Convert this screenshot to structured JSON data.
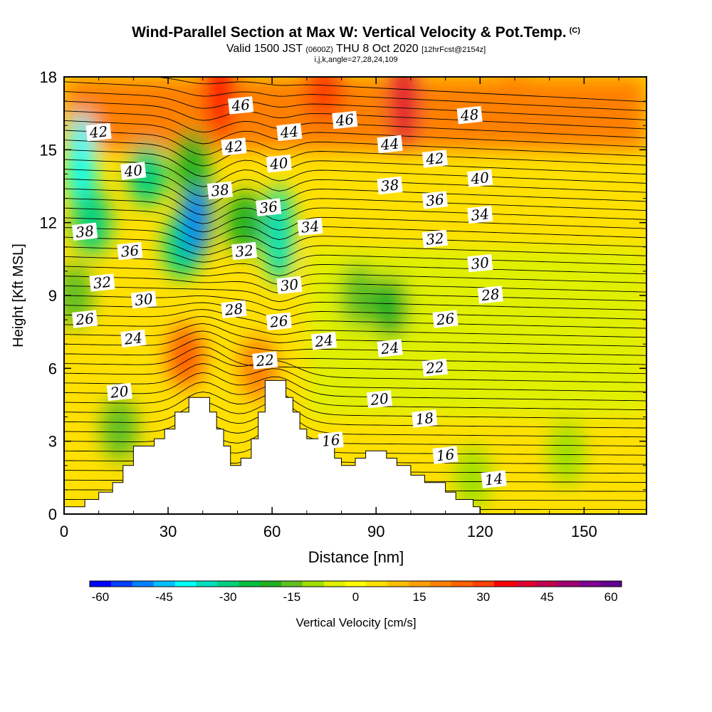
{
  "title": {
    "main": "Wind-Parallel Section at Max W: Vertical Velocity & Pot.Temp.",
    "copyright": "(C)",
    "valid_prefix": "Valid 1500 JST",
    "utc": "(0600Z)",
    "valid_date": "THU 8 Oct 2020",
    "forecast": "[12hrFcst@2154z]",
    "indices": "i,j,k,angle=27,28,24,109"
  },
  "chart_data": {
    "type": "heatmap",
    "xlabel": "Distance [nm]",
    "ylabel": "Height [Kft MSL]",
    "xlim": [
      0,
      168
    ],
    "ylim": [
      0,
      18
    ],
    "xticks": [
      0,
      30,
      60,
      90,
      120,
      150
    ],
    "yticks": [
      0,
      3,
      6,
      9,
      12,
      15,
      18
    ],
    "colorbar": {
      "label": "Vertical Velocity [cm/s]",
      "min": -60,
      "max": 60,
      "tick_values": [
        -60,
        -45,
        -30,
        -15,
        0,
        15,
        30,
        45,
        60
      ],
      "tick_labels": [
        "-60",
        "-45",
        "-30",
        "-15",
        "0",
        "15",
        "30",
        "45",
        "60"
      ],
      "colors": [
        "#0000ff",
        "#0040ff",
        "#0080ff",
        "#00c0ff",
        "#00ffff",
        "#00e0c0",
        "#00d080",
        "#00c040",
        "#20b020",
        "#60c020",
        "#a0e000",
        "#e0f000",
        "#ffff00",
        "#ffe000",
        "#ffc000",
        "#ffa000",
        "#ff8000",
        "#ff6000",
        "#ff4000",
        "#ff0000",
        "#e00030",
        "#c00050",
        "#a00070",
        "#800090",
        "#600090"
      ]
    },
    "terrain_height_kft": [
      [
        0,
        0.3
      ],
      [
        6,
        0.3
      ],
      [
        6,
        0.6
      ],
      [
        10,
        0.6
      ],
      [
        10,
        0.9
      ],
      [
        14,
        0.9
      ],
      [
        14,
        1.3
      ],
      [
        17,
        1.3
      ],
      [
        17,
        2.0
      ],
      [
        20,
        2.0
      ],
      [
        20,
        2.8
      ],
      [
        26,
        2.8
      ],
      [
        26,
        3.1
      ],
      [
        29,
        3.1
      ],
      [
        29,
        3.5
      ],
      [
        32,
        3.5
      ],
      [
        32,
        4.2
      ],
      [
        36,
        4.2
      ],
      [
        36,
        4.8
      ],
      [
        42,
        4.8
      ],
      [
        42,
        4.2
      ],
      [
        44,
        4.2
      ],
      [
        44,
        3.5
      ],
      [
        46,
        3.5
      ],
      [
        46,
        2.8
      ],
      [
        48,
        2.8
      ],
      [
        48,
        2.0
      ],
      [
        51,
        2.0
      ],
      [
        51,
        2.3
      ],
      [
        54,
        2.3
      ],
      [
        54,
        3.1
      ],
      [
        56,
        3.1
      ],
      [
        56,
        4.2
      ],
      [
        58,
        4.2
      ],
      [
        58,
        5.5
      ],
      [
        64,
        5.5
      ],
      [
        64,
        4.8
      ],
      [
        66,
        4.8
      ],
      [
        66,
        4.2
      ],
      [
        68,
        4.2
      ],
      [
        68,
        3.5
      ],
      [
        70,
        3.5
      ],
      [
        70,
        3.1
      ],
      [
        75,
        3.1
      ],
      [
        75,
        2.8
      ],
      [
        78,
        2.8
      ],
      [
        78,
        2.3
      ],
      [
        80,
        2.3
      ],
      [
        80,
        2.0
      ],
      [
        84,
        2.0
      ],
      [
        84,
        2.3
      ],
      [
        87,
        2.3
      ],
      [
        87,
        2.6
      ],
      [
        93,
        2.6
      ],
      [
        93,
        2.3
      ],
      [
        96,
        2.3
      ],
      [
        96,
        2.0
      ],
      [
        100,
        2.0
      ],
      [
        100,
        1.6
      ],
      [
        104,
        1.6
      ],
      [
        104,
        1.3
      ],
      [
        110,
        1.3
      ],
      [
        110,
        0.9
      ],
      [
        113,
        0.9
      ],
      [
        113,
        0.6
      ],
      [
        118,
        0.6
      ],
      [
        118,
        0.3
      ],
      [
        120,
        0.3
      ],
      [
        120,
        0
      ]
    ],
    "velocity_cells": [
      {
        "x": 5,
        "z": 14.5,
        "w": -40
      },
      {
        "x": 8,
        "z": 12.0,
        "w": -30
      },
      {
        "x": 3,
        "z": 9.0,
        "w": -15
      },
      {
        "x": 24,
        "z": 14.0,
        "w": -30
      },
      {
        "x": 34,
        "z": 11.0,
        "w": -30
      },
      {
        "x": 38,
        "z": 12.5,
        "w": -50
      },
      {
        "x": 37,
        "z": 14.5,
        "w": -20
      },
      {
        "x": 52,
        "z": 12.0,
        "w": -20
      },
      {
        "x": 62,
        "z": 11.5,
        "w": -35
      },
      {
        "x": 85,
        "z": 9.0,
        "w": -15
      },
      {
        "x": 94,
        "z": 8.5,
        "w": -20
      },
      {
        "x": 16,
        "z": 3.5,
        "w": -15
      },
      {
        "x": 35,
        "z": 6.5,
        "w": 25
      },
      {
        "x": 45,
        "z": 17.5,
        "w": 35
      },
      {
        "x": 75,
        "z": 17.5,
        "w": 30
      },
      {
        "x": 98,
        "z": 17.0,
        "w": 40
      },
      {
        "x": 56,
        "z": 6.0,
        "w": 20
      },
      {
        "x": 130,
        "z": 17.0,
        "w": 20
      },
      {
        "x": 120,
        "z": 9.0,
        "w": -5
      },
      {
        "x": 145,
        "z": 8.0,
        "w": -5
      },
      {
        "x": 145,
        "z": 2.5,
        "w": -8
      },
      {
        "x": 118,
        "z": 1.5,
        "w": -12
      }
    ],
    "isentrope_labels": [
      {
        "value": "42",
        "x": 10,
        "z": 15.7
      },
      {
        "value": "40",
        "x": 20,
        "z": 14.1
      },
      {
        "value": "38",
        "x": 6,
        "z": 11.6
      },
      {
        "value": "36",
        "x": 19,
        "z": 10.8
      },
      {
        "value": "32",
        "x": 11,
        "z": 9.5
      },
      {
        "value": "30",
        "x": 23,
        "z": 8.8
      },
      {
        "value": "26",
        "x": 6,
        "z": 8.0
      },
      {
        "value": "24",
        "x": 20,
        "z": 7.2
      },
      {
        "value": "20",
        "x": 16,
        "z": 5.0
      },
      {
        "value": "46",
        "x": 51,
        "z": 16.8
      },
      {
        "value": "42",
        "x": 49,
        "z": 15.1
      },
      {
        "value": "38",
        "x": 45,
        "z": 13.3
      },
      {
        "value": "32",
        "x": 52,
        "z": 10.8
      },
      {
        "value": "28",
        "x": 49,
        "z": 8.4
      },
      {
        "value": "44",
        "x": 65,
        "z": 15.7
      },
      {
        "value": "40",
        "x": 62,
        "z": 14.4
      },
      {
        "value": "36",
        "x": 59,
        "z": 12.6
      },
      {
        "value": "34",
        "x": 71,
        "z": 11.8
      },
      {
        "value": "30",
        "x": 65,
        "z": 9.4
      },
      {
        "value": "26",
        "x": 62,
        "z": 7.9
      },
      {
        "value": "22",
        "x": 58,
        "z": 6.3
      },
      {
        "value": "24",
        "x": 75,
        "z": 7.1
      },
      {
        "value": "46",
        "x": 81,
        "z": 16.2
      },
      {
        "value": "44",
        "x": 94,
        "z": 15.2
      },
      {
        "value": "38",
        "x": 94,
        "z": 13.5
      },
      {
        "value": "24",
        "x": 94,
        "z": 6.8
      },
      {
        "value": "20",
        "x": 91,
        "z": 4.7
      },
      {
        "value": "16",
        "x": 77,
        "z": 3.0
      },
      {
        "value": "42",
        "x": 107,
        "z": 14.6
      },
      {
        "value": "36",
        "x": 107,
        "z": 12.9
      },
      {
        "value": "32",
        "x": 107,
        "z": 11.3
      },
      {
        "value": "26",
        "x": 110,
        "z": 8.0
      },
      {
        "value": "22",
        "x": 107,
        "z": 6.0
      },
      {
        "value": "18",
        "x": 104,
        "z": 3.9
      },
      {
        "value": "16",
        "x": 110,
        "z": 2.4
      },
      {
        "value": "14",
        "x": 124,
        "z": 1.4
      },
      {
        "value": "48",
        "x": 117,
        "z": 16.4
      },
      {
        "value": "40",
        "x": 120,
        "z": 13.8
      },
      {
        "value": "34",
        "x": 120,
        "z": 12.3
      },
      {
        "value": "30",
        "x": 120,
        "z": 10.3
      },
      {
        "value": "28",
        "x": 123,
        "z": 9.0
      }
    ]
  }
}
